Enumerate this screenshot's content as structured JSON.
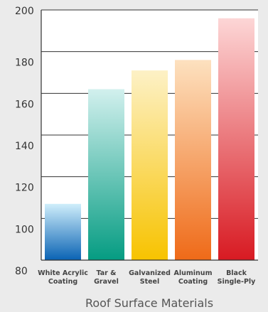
{
  "chart_data": {
    "type": "bar",
    "categories": [
      [
        "White Acrylic",
        "Coating"
      ],
      [
        "Tar &",
        "Gravel"
      ],
      [
        "Galvanized",
        "Steel"
      ],
      [
        "Aluminum",
        "Coating"
      ],
      [
        "Black",
        "Single-Ply"
      ]
    ],
    "values": [
      107,
      162,
      171,
      176,
      196
    ],
    "xlabel": "Roof Surface Materials",
    "ylabel": "",
    "ylim": [
      80,
      200
    ],
    "yticks": [
      80,
      100,
      120,
      140,
      160,
      180,
      200
    ],
    "grid": true,
    "bar_colors": [
      [
        "#cfeefb",
        "#0a63b4"
      ],
      [
        "#d2f0ee",
        "#059c82"
      ],
      [
        "#fdf1c6",
        "#f7c300"
      ],
      [
        "#fde1bf",
        "#ef6a18"
      ],
      [
        "#fdd6d6",
        "#d81a22"
      ]
    ]
  }
}
